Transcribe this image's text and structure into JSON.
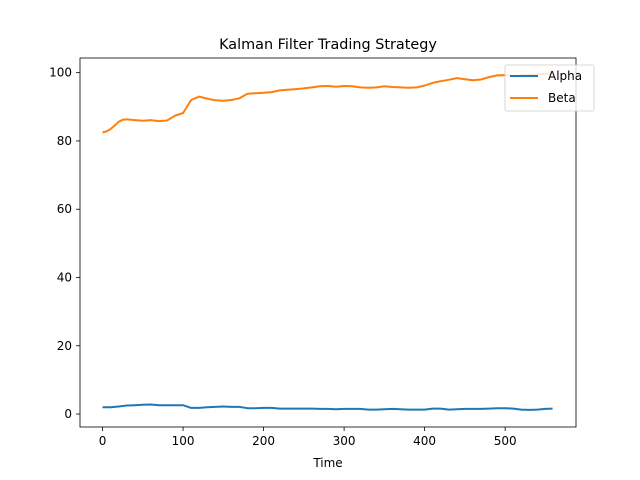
{
  "chart_data": {
    "type": "line",
    "title": "Kalman Filter Trading Strategy",
    "xlabel": "Time",
    "ylabel": "",
    "xlim": [
      -28,
      588
    ],
    "ylim": [
      -3.8,
      104.3
    ],
    "xticks": [
      0,
      100,
      200,
      300,
      400,
      500
    ],
    "yticks": [
      0,
      20,
      40,
      60,
      80,
      100
    ],
    "legend_position": "top-right",
    "grid": false,
    "series": [
      {
        "name": "Alpha",
        "color": "#1f77b4",
        "x": [
          0,
          10,
          20,
          30,
          40,
          50,
          60,
          70,
          80,
          90,
          100,
          110,
          120,
          130,
          140,
          150,
          160,
          170,
          180,
          190,
          200,
          210,
          220,
          230,
          240,
          250,
          260,
          270,
          280,
          290,
          300,
          310,
          320,
          330,
          340,
          350,
          360,
          370,
          380,
          390,
          400,
          410,
          420,
          430,
          440,
          450,
          460,
          470,
          480,
          490,
          500,
          510,
          520,
          530,
          540,
          550,
          559
        ],
        "values": [
          2.0,
          2.0,
          2.2,
          2.5,
          2.6,
          2.7,
          2.8,
          2.6,
          2.6,
          2.6,
          2.6,
          1.8,
          1.8,
          2.0,
          2.1,
          2.2,
          2.1,
          2.1,
          1.7,
          1.7,
          1.8,
          1.8,
          1.6,
          1.6,
          1.6,
          1.6,
          1.6,
          1.5,
          1.5,
          1.4,
          1.5,
          1.5,
          1.5,
          1.3,
          1.3,
          1.4,
          1.5,
          1.4,
          1.3,
          1.3,
          1.3,
          1.6,
          1.6,
          1.3,
          1.4,
          1.5,
          1.5,
          1.5,
          1.6,
          1.7,
          1.7,
          1.6,
          1.3,
          1.2,
          1.3,
          1.5,
          1.6
        ]
      },
      {
        "name": "Beta",
        "color": "#ff7f0e",
        "x": [
          0,
          5,
          10,
          15,
          20,
          25,
          30,
          40,
          50,
          60,
          70,
          80,
          90,
          100,
          110,
          120,
          130,
          140,
          150,
          160,
          170,
          180,
          190,
          200,
          210,
          220,
          230,
          240,
          250,
          260,
          270,
          280,
          290,
          300,
          310,
          320,
          330,
          340,
          350,
          360,
          370,
          380,
          390,
          400,
          410,
          420,
          430,
          440,
          450,
          460,
          470,
          480,
          490,
          500,
          510,
          520,
          530,
          540,
          550,
          559
        ],
        "values": [
          82.5,
          82.8,
          83.5,
          84.5,
          85.6,
          86.2,
          86.3,
          86.1,
          85.9,
          86.1,
          85.8,
          86.0,
          87.4,
          88.2,
          92.0,
          93.0,
          92.4,
          91.9,
          91.8,
          92.0,
          92.5,
          93.8,
          94.0,
          94.1,
          94.3,
          94.8,
          95.0,
          95.2,
          95.4,
          95.7,
          96.0,
          96.1,
          95.9,
          96.1,
          96.0,
          95.7,
          95.6,
          95.7,
          96.0,
          95.8,
          95.7,
          95.6,
          95.7,
          96.2,
          97.0,
          97.5,
          97.9,
          98.4,
          98.1,
          97.8,
          98.0,
          98.7,
          99.2,
          99.3,
          99.0,
          99.2,
          99.4,
          99.5,
          99.7,
          99.8
        ]
      }
    ]
  }
}
